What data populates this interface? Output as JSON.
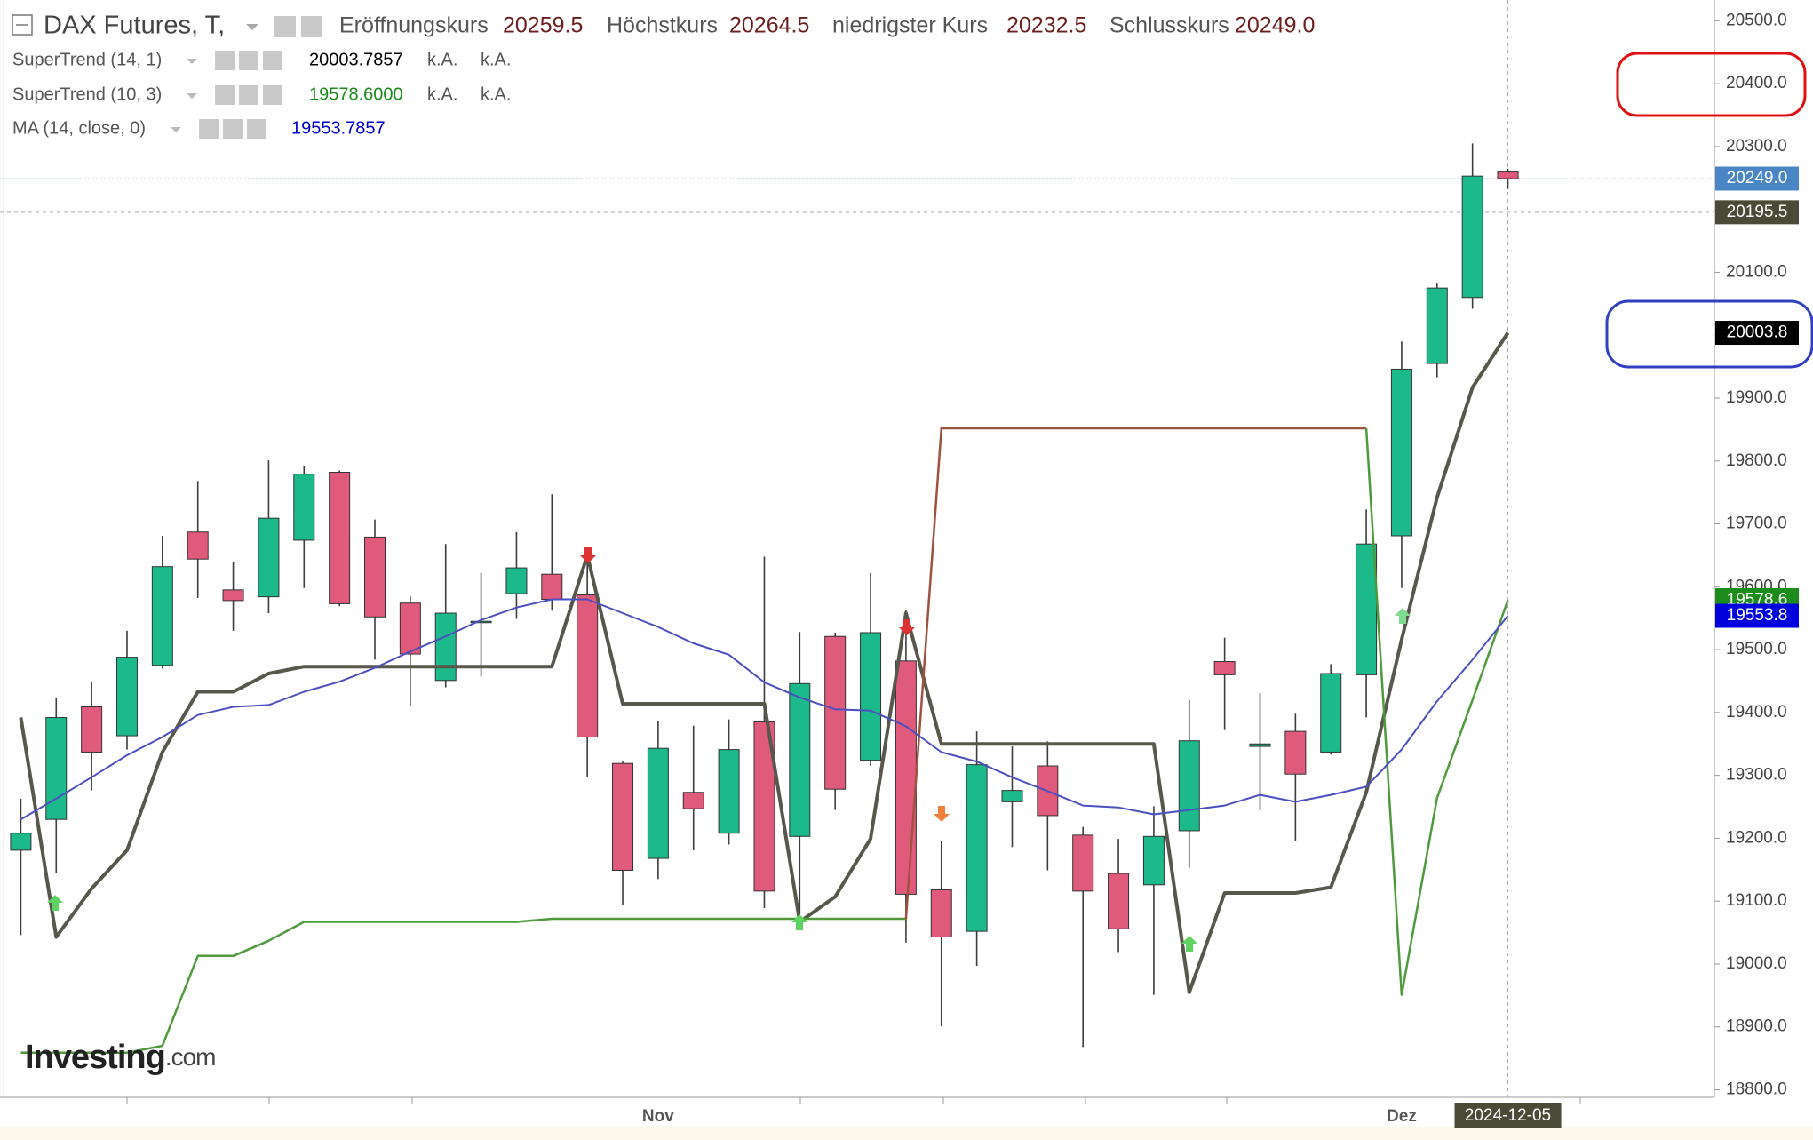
{
  "chart_data": {
    "type": "candlestick",
    "title": "DAX Futures, T,",
    "header_fields": [
      {
        "name": "Eröffnungskurs",
        "value": "20259.5"
      },
      {
        "name": "Höchstkurs",
        "value": "20264.5"
      },
      {
        "name": "niedrigster Kurs",
        "value": "20232.5"
      },
      {
        "name": "Schlusskurs",
        "value": "20249.0"
      }
    ],
    "categories": [
      null,
      null,
      null,
      null,
      null,
      null,
      null,
      null,
      null,
      null,
      null,
      null,
      null,
      null,
      null,
      null,
      null,
      null,
      "Nov",
      null,
      null,
      null,
      null,
      null,
      null,
      null,
      null,
      null,
      null,
      null,
      null,
      null,
      null,
      null,
      null,
      null,
      null,
      null,
      null,
      "Dez",
      null,
      null,
      "2024-12-05"
    ],
    "open": [
      19181,
      19230,
      19409,
      19363,
      19475,
      19687,
      19595,
      19584,
      19674,
      19782,
      19679,
      19574,
      19451,
      19543,
      19589,
      19620,
      19587,
      19319,
      19168,
      19273,
      19208,
      19385,
      19203,
      19521,
      19324,
      19482,
      19118,
      19052,
      19258,
      19315,
      19205,
      19144,
      19126,
      19212,
      19481,
      19346,
      19370,
      19337,
      19460,
      19681,
      19955,
      20060,
      20259.5
    ],
    "high": [
      19263,
      19424,
      19448,
      19530,
      19681,
      19768,
      19639,
      19801,
      19792,
      19785,
      19707,
      19585,
      19668,
      19622,
      19687,
      19747,
      19659,
      19322,
      19387,
      19379,
      19389,
      19648,
      19528,
      19527,
      19622,
      19563,
      19195,
      19370,
      19346,
      19354,
      19218,
      19199,
      19251,
      19420,
      19519,
      19431,
      19398,
      19477,
      19723,
      19990,
      20082,
      20305,
      20264.5
    ],
    "low": [
      19046,
      19144,
      19276,
      19341,
      19470,
      19582,
      19530,
      19558,
      19598,
      19569,
      19484,
      19411,
      19440,
      19457,
      19549,
      19562,
      19297,
      19094,
      19135,
      19181,
      19190,
      19089,
      19080,
      19245,
      19315,
      19034,
      18901,
      18997,
      19186,
      19149,
      18868,
      19019,
      18951,
      19153,
      19372,
      19245,
      19195,
      19333,
      19392,
      19598,
      19933,
      20042,
      20232.5
    ],
    "close": [
      19208,
      19392,
      19337,
      19488,
      19632,
      19644,
      19578,
      19709,
      19779,
      19573,
      19552,
      19493,
      19558,
      19545,
      19630,
      19580,
      19361,
      19149,
      19343,
      19247,
      19341,
      19116,
      19446,
      19278,
      19527,
      19111,
      19043,
      19317,
      19276,
      19236,
      19116,
      19056,
      19203,
      19355,
      19460,
      19350,
      19302,
      19462,
      19668,
      19946,
      20075,
      20253,
      20249
    ],
    "up_color": "#1cb98a",
    "down_color": "#e05a7c",
    "series": [
      {
        "name": "SuperTrend (14, 1)",
        "color": "#58574b",
        "legend_label": "20003.7857",
        "legend_extra": [
          "k.A.",
          "k.A."
        ],
        "values": [
          19392,
          19043,
          19120,
          19181,
          19337,
          19433,
          19433,
          19462,
          19473,
          19473,
          19473,
          19473,
          19473,
          19473,
          19473,
          19473,
          19650,
          19414,
          19414,
          19414,
          19414,
          19414,
          19067,
          19107,
          19199,
          19558,
          19350,
          19350,
          19350,
          19350,
          19350,
          19350,
          19350,
          18955,
          19113,
          19113,
          19113,
          19122,
          19273,
          19516,
          19742,
          19917,
          20003.7857
        ]
      },
      {
        "name": "SuperTrend (10, 3)",
        "color": "#4f9a3c",
        "down_color": "#a0523f",
        "legend_label": "19578.6000",
        "legend_extra": [
          "k.A.",
          "k.A."
        ],
        "values": [
          18859,
          18859,
          18859,
          18859,
          18870,
          19013,
          19013,
          19037,
          19067,
          19067,
          19067,
          19067,
          19067,
          19067,
          19067,
          19072,
          19072,
          19072,
          19072,
          19072,
          19072,
          19072,
          19072,
          19072,
          19072,
          19072,
          19852,
          19852,
          19852,
          19852,
          19852,
          19852,
          19852,
          19852,
          19852,
          19852,
          19852,
          19852,
          19852,
          18951,
          19264,
          19420,
          19578.6
        ]
      },
      {
        "name": "MA (14, close, 0)",
        "color": "#4b4fc0",
        "legend_label": "19553.7857",
        "values": [
          19230,
          19263,
          19297,
          19332,
          19361,
          19396,
          19409,
          19412,
          19433,
          19449,
          19471,
          19497,
          19521,
          19547,
          19567,
          19580,
          19580,
          19558,
          19536,
          19510,
          19492,
          19448,
          19424,
          19405,
          19403,
          19378,
          19337,
          19322,
          19297,
          19275,
          19252,
          19249,
          19238,
          19245,
          19252,
          19269,
          19258,
          19269,
          19282,
          19341,
          19418,
          19484,
          19553.7857
        ]
      }
    ],
    "ylim": [
      18788,
      20533
    ],
    "yticks": [
      {
        "value": 18800,
        "label": "18800.0"
      },
      {
        "value": 18900,
        "label": "18900.0"
      },
      {
        "value": 19000,
        "label": "19000.0"
      },
      {
        "value": 19100,
        "label": "19100.0"
      },
      {
        "value": 19200,
        "label": "19200.0"
      },
      {
        "value": 19300,
        "label": "19300.0"
      },
      {
        "value": 19400,
        "label": "19400.0"
      },
      {
        "value": 19500,
        "label": "19500.0"
      },
      {
        "value": 19600,
        "label": "19600.0"
      },
      {
        "value": 19700,
        "label": "19700.0"
      },
      {
        "value": 19800,
        "label": "19800.0"
      },
      {
        "value": 19900,
        "label": "19900.0"
      },
      {
        "value": 20000,
        "label": "20000.0"
      },
      {
        "value": 20100,
        "label": "20100.0"
      },
      {
        "value": 20200,
        "label": "20200.0"
      },
      {
        "value": 20300,
        "label": "20300.0"
      },
      {
        "value": 20400,
        "label": "20400.0"
      },
      {
        "value": 20500,
        "label": "20500.0"
      }
    ],
    "price_labels": [
      {
        "value": 20249,
        "label": "20249.0",
        "color": "#4a86c5"
      },
      {
        "value": 20195.5,
        "label": "20195.5",
        "color": "#4b4a36"
      },
      {
        "value": 20003.7857,
        "label": "20003.8",
        "color": "#000000"
      },
      {
        "value": 19578.6,
        "label": "19578.6",
        "color": "#1c8c1c"
      },
      {
        "value": 19553.7857,
        "label": "19553.8",
        "color": "#0000dd"
      }
    ],
    "watermark": "Investing",
    "watermark_suffix": ".com"
  }
}
